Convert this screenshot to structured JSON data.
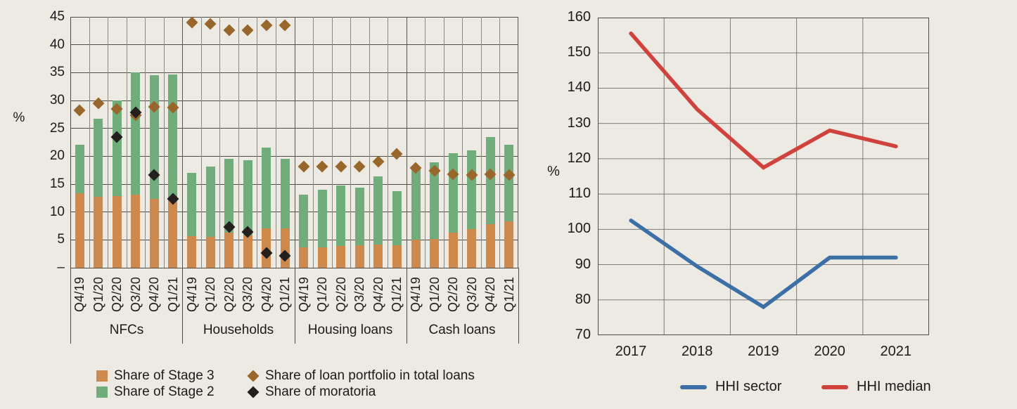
{
  "colors": {
    "background": "#EDEAE3",
    "grid_h": "#4E4B46",
    "grid_v": "#8A8781",
    "grid_right": "#7E7B76",
    "border": "#4E4B46",
    "text": "#1B1B1B"
  },
  "chart_data": [
    {
      "id": "loan-portfolio-stages",
      "type": "bar",
      "ylabel": "%",
      "ylim": [
        0,
        45
      ],
      "ytick_step": 5,
      "zero_tick_label": "–",
      "grid": true,
      "quarters": [
        "Q4/19",
        "Q1/20",
        "Q2/20",
        "Q3/20",
        "Q4/20",
        "Q1/21"
      ],
      "groups": [
        {
          "label": "NFCs",
          "stage3": [
            13.4,
            12.7,
            12.9,
            13.1,
            12.3,
            12.1
          ],
          "stage2": [
            8.6,
            14.0,
            17.1,
            21.9,
            22.2,
            22.6
          ],
          "portfolio": [
            28.2,
            29.5,
            28.5,
            27.3,
            28.9,
            28.8
          ],
          "moratoria": [
            null,
            null,
            23.5,
            27.9,
            16.7,
            12.4
          ]
        },
        {
          "label": "Households",
          "stage3": [
            5.7,
            5.6,
            6.3,
            5.8,
            7.0,
            7.1
          ],
          "stage2": [
            11.3,
            12.5,
            13.2,
            13.5,
            14.5,
            12.5
          ],
          "portfolio": [
            44.0,
            43.7,
            42.6,
            42.6,
            43.5,
            43.5
          ],
          "moratoria": [
            null,
            null,
            7.3,
            6.4,
            2.6,
            2.1
          ]
        },
        {
          "label": "Housing loans",
          "stage3": [
            3.6,
            3.7,
            3.9,
            4.0,
            4.1,
            4.0
          ],
          "stage2": [
            9.5,
            10.3,
            10.9,
            10.4,
            12.3,
            9.8
          ],
          "portfolio": [
            18.2,
            18.2,
            18.1,
            18.2,
            19.0,
            20.4
          ],
          "moratoria": [
            null,
            null,
            null,
            null,
            null,
            null
          ]
        },
        {
          "label": "Cash loans",
          "stage3": [
            5.1,
            5.2,
            6.3,
            6.9,
            7.8,
            8.3
          ],
          "stage2": [
            12.9,
            13.7,
            14.3,
            14.2,
            15.7,
            13.8
          ],
          "portfolio": [
            17.9,
            17.4,
            16.8,
            16.6,
            16.8,
            16.7
          ],
          "moratoria": [
            null,
            null,
            null,
            null,
            null,
            null
          ]
        }
      ],
      "legend": [
        {
          "label": "Share of Stage 3",
          "marker": "square",
          "color": "#D0894D"
        },
        {
          "label": "Share of Stage 2",
          "marker": "square",
          "color": "#6FAD7B"
        },
        {
          "label": "Share of loan portfolio in total loans",
          "marker": "diamond",
          "color": "#99672C"
        },
        {
          "label": "Share of moratoria",
          "marker": "diamond",
          "color": "#221F1D"
        }
      ]
    },
    {
      "id": "hhi-indices",
      "type": "line",
      "ylabel": "%",
      "ylim": [
        70,
        160
      ],
      "ytick_step": 10,
      "grid": true,
      "x": [
        "2017",
        "2018",
        "2019",
        "2020",
        "2021"
      ],
      "series": [
        {
          "name": "HHI sector",
          "color": "#3C6FA6",
          "values": [
            102.5,
            89.5,
            78,
            92,
            92
          ]
        },
        {
          "name": "HHI median",
          "color": "#D0423C",
          "values": [
            155.5,
            134,
            117.5,
            128,
            123.5
          ]
        }
      ],
      "legend_position": "bottom"
    }
  ]
}
